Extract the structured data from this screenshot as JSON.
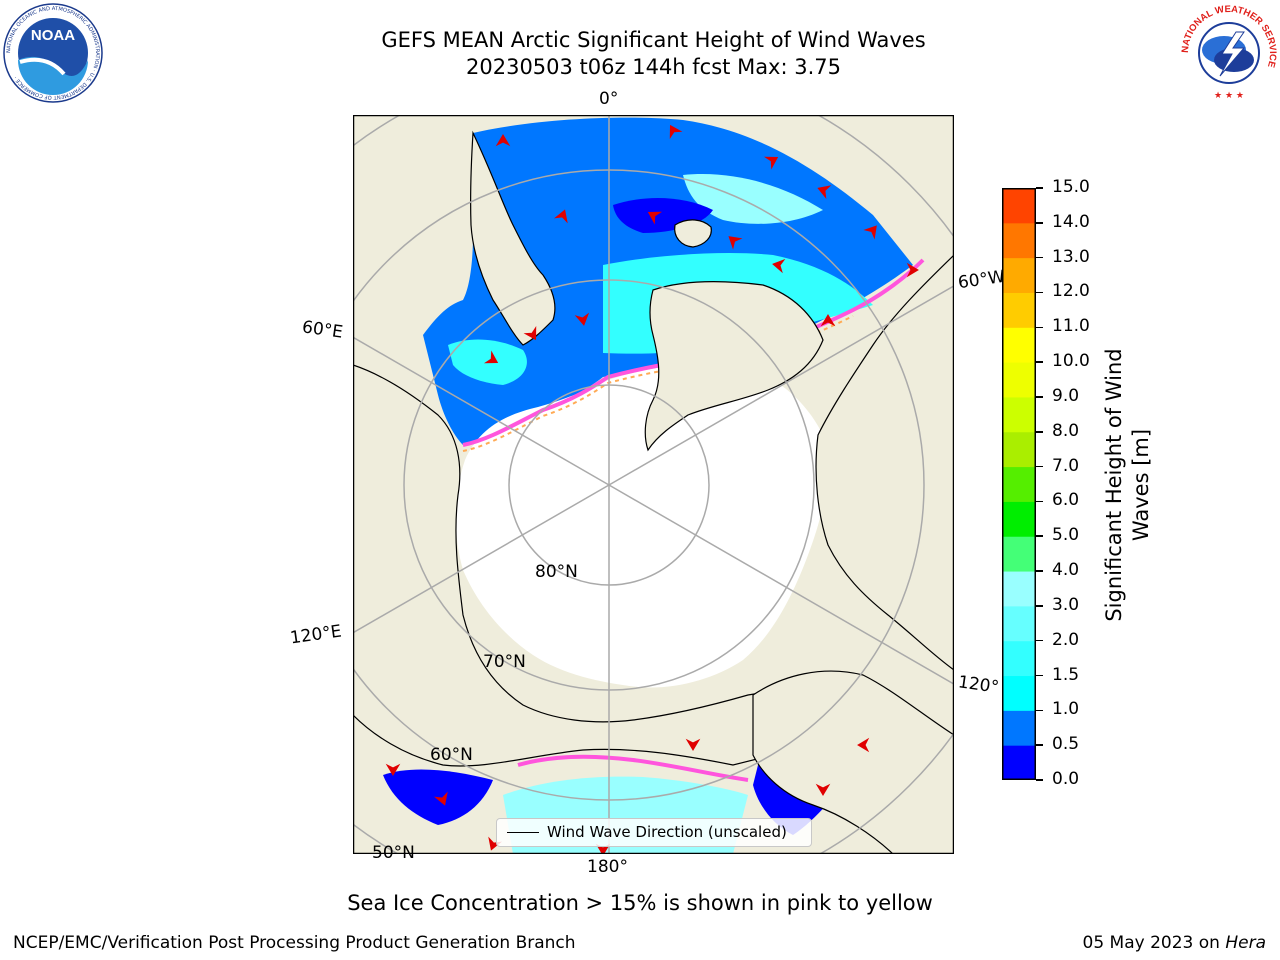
{
  "header": {
    "title_line1": "GEFS MEAN Arctic Significant Height of Wind Waves",
    "title_line2": "20230503 t06z 144h fcst   Max: 3.75"
  },
  "logos": {
    "noaa_text": "NOAA",
    "noaa_ring_text": "NATIONAL OCEANIC AND ATMOSPHERIC ADMINISTRATION · U.S. DEPARTMENT OF COMMERCE ·",
    "nws_ring_text": "NATIONAL WEATHER SERVICE"
  },
  "map": {
    "projection": "north-polar-stereographic",
    "longitude_labels": {
      "lon_0": "0°",
      "lon_60w": "60°W",
      "lon_60e": "60°E",
      "lon_120e": "120°E",
      "lon_120w": "120°",
      "lon_180": "180°"
    },
    "latitude_labels": {
      "lat_80": "80°N",
      "lat_70": "70°N",
      "lat_60": "60°N",
      "lat_50": "50°N"
    },
    "legend_label": "Wind Wave Direction (unscaled)",
    "colors": {
      "land": "#efeddc",
      "ice_edge_pink": "#ff55dd",
      "ice_edge_orange": "#ffaa55"
    }
  },
  "colorbar": {
    "label": "Significant Height of Wind Waves [m]",
    "ticks": [
      "0.0",
      "0.5",
      "1.0",
      "1.5",
      "2.0",
      "3.0",
      "4.0",
      "5.0",
      "6.0",
      "7.0",
      "8.0",
      "9.0",
      "10.0",
      "11.0",
      "12.0",
      "13.0",
      "14.0",
      "15.0"
    ],
    "colors": [
      "#0000ff",
      "#0077ff",
      "#00ffff",
      "#33ffff",
      "#66ffff",
      "#99ffff",
      "#44ff77",
      "#00ee00",
      "#55ee00",
      "#aaee00",
      "#ccff00",
      "#eeff00",
      "#ffff00",
      "#ffcc00",
      "#ffaa00",
      "#ff7700",
      "#ff4400",
      "#ff0000"
    ]
  },
  "caption": "Sea Ice Concentration > 15% is shown in pink to yellow",
  "footer": {
    "left": "NCEP/EMC/Verification Post Processing Product Generation Branch",
    "right_date": "05 May 2023 on ",
    "right_host": "Hera"
  }
}
